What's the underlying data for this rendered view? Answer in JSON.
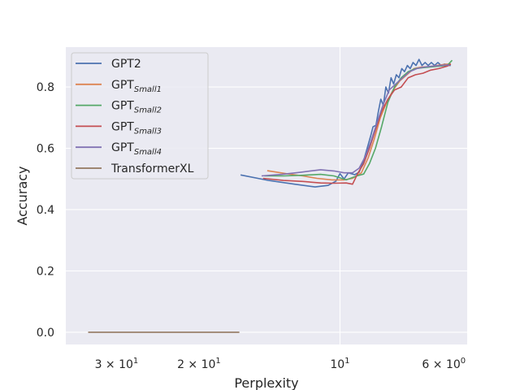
{
  "chart_data": {
    "type": "line",
    "xlabel": "Perplexity",
    "ylabel": "Accuracy",
    "x_scale": "log",
    "x_inverted": true,
    "xlim": [
      38.5,
      5.35
    ],
    "ylim": [
      -0.04,
      0.93
    ],
    "grid": true,
    "legend_position": "top-left",
    "x_ticks": [
      {
        "value": 30,
        "label": "3 × 10",
        "exp": "1"
      },
      {
        "value": 20,
        "label": "2 × 10",
        "exp": "1"
      },
      {
        "value": 10,
        "label": "10",
        "exp": "1"
      },
      {
        "value": 6,
        "label": "6 × 10",
        "exp": "0"
      }
    ],
    "y_ticks": [
      {
        "value": 0.0,
        "label": "0.0"
      },
      {
        "value": 0.2,
        "label": "0.2"
      },
      {
        "value": 0.4,
        "label": "0.4"
      },
      {
        "value": 0.6,
        "label": "0.6"
      },
      {
        "value": 0.8,
        "label": "0.8"
      }
    ],
    "series": [
      {
        "name": "GPT2",
        "name_base": "GPT2",
        "name_sub": "",
        "color": "#4c72b0",
        "points": [
          [
            16.3,
            0.513
          ],
          [
            14.2,
            0.495
          ],
          [
            12.5,
            0.483
          ],
          [
            11.3,
            0.474
          ],
          [
            10.6,
            0.479
          ],
          [
            10.2,
            0.493
          ],
          [
            10.0,
            0.517
          ],
          [
            9.8,
            0.5
          ],
          [
            9.6,
            0.52
          ],
          [
            9.3,
            0.514
          ],
          [
            9.1,
            0.522
          ],
          [
            8.9,
            0.56
          ],
          [
            8.75,
            0.6
          ],
          [
            8.6,
            0.64
          ],
          [
            8.5,
            0.67
          ],
          [
            8.38,
            0.675
          ],
          [
            8.28,
            0.72
          ],
          [
            8.18,
            0.76
          ],
          [
            8.08,
            0.74
          ],
          [
            7.98,
            0.8
          ],
          [
            7.88,
            0.78
          ],
          [
            7.78,
            0.83
          ],
          [
            7.68,
            0.81
          ],
          [
            7.58,
            0.84
          ],
          [
            7.48,
            0.83
          ],
          [
            7.38,
            0.86
          ],
          [
            7.28,
            0.85
          ],
          [
            7.18,
            0.87
          ],
          [
            7.08,
            0.86
          ],
          [
            6.98,
            0.88
          ],
          [
            6.88,
            0.87
          ],
          [
            6.78,
            0.89
          ],
          [
            6.68,
            0.87
          ],
          [
            6.58,
            0.88
          ],
          [
            6.48,
            0.87
          ],
          [
            6.38,
            0.88
          ],
          [
            6.28,
            0.87
          ],
          [
            6.18,
            0.88
          ],
          [
            6.08,
            0.87
          ],
          [
            5.98,
            0.875
          ],
          [
            5.88,
            0.87
          ],
          [
            5.8,
            0.87
          ]
        ]
      },
      {
        "name": "GPT Small1",
        "name_base": "GPT",
        "name_sub": "Small1",
        "color": "#dd8452",
        "points": [
          [
            14.3,
            0.527
          ],
          [
            13.0,
            0.517
          ],
          [
            12.0,
            0.51
          ],
          [
            11.2,
            0.502
          ],
          [
            10.4,
            0.497
          ],
          [
            9.8,
            0.497
          ],
          [
            9.4,
            0.502
          ],
          [
            9.0,
            0.52
          ],
          [
            8.7,
            0.57
          ],
          [
            8.45,
            0.63
          ],
          [
            8.2,
            0.7
          ],
          [
            7.95,
            0.75
          ],
          [
            7.7,
            0.79
          ],
          [
            7.45,
            0.82
          ],
          [
            7.2,
            0.84
          ],
          [
            6.95,
            0.86
          ],
          [
            6.7,
            0.865
          ],
          [
            6.45,
            0.866
          ],
          [
            6.2,
            0.87
          ],
          [
            5.95,
            0.874
          ],
          [
            5.8,
            0.875
          ]
        ]
      },
      {
        "name": "GPT Small2",
        "name_base": "GPT",
        "name_sub": "Small2",
        "color": "#55a868",
        "points": [
          [
            14.5,
            0.51
          ],
          [
            13.2,
            0.51
          ],
          [
            12.0,
            0.512
          ],
          [
            11.0,
            0.515
          ],
          [
            10.3,
            0.51
          ],
          [
            9.7,
            0.497
          ],
          [
            9.2,
            0.51
          ],
          [
            8.9,
            0.516
          ],
          [
            8.65,
            0.55
          ],
          [
            8.4,
            0.6
          ],
          [
            8.15,
            0.67
          ],
          [
            7.9,
            0.75
          ],
          [
            7.65,
            0.8
          ],
          [
            7.4,
            0.83
          ],
          [
            7.15,
            0.85
          ],
          [
            6.9,
            0.86
          ],
          [
            6.65,
            0.863
          ],
          [
            6.4,
            0.865
          ],
          [
            6.15,
            0.868
          ],
          [
            5.9,
            0.87
          ],
          [
            5.76,
            0.887
          ]
        ]
      },
      {
        "name": "GPT Small3",
        "name_base": "GPT",
        "name_sub": "Small3",
        "color": "#c44e52",
        "points": [
          [
            14.6,
            0.502
          ],
          [
            13.2,
            0.495
          ],
          [
            12.0,
            0.492
          ],
          [
            11.0,
            0.487
          ],
          [
            10.3,
            0.486
          ],
          [
            9.7,
            0.487
          ],
          [
            9.4,
            0.483
          ],
          [
            9.15,
            0.52
          ],
          [
            8.9,
            0.55
          ],
          [
            8.65,
            0.6
          ],
          [
            8.4,
            0.66
          ],
          [
            8.15,
            0.72
          ],
          [
            7.9,
            0.76
          ],
          [
            7.65,
            0.79
          ],
          [
            7.4,
            0.8
          ],
          [
            7.15,
            0.83
          ],
          [
            6.9,
            0.84
          ],
          [
            6.65,
            0.845
          ],
          [
            6.4,
            0.855
          ],
          [
            6.15,
            0.86
          ],
          [
            5.9,
            0.868
          ],
          [
            5.8,
            0.875
          ]
        ]
      },
      {
        "name": "GPT Small4",
        "name_base": "GPT",
        "name_sub": "Small4",
        "color": "#8172b3",
        "points": [
          [
            14.7,
            0.51
          ],
          [
            13.3,
            0.515
          ],
          [
            12.1,
            0.522
          ],
          [
            11.0,
            0.53
          ],
          [
            10.3,
            0.526
          ],
          [
            9.8,
            0.52
          ],
          [
            9.4,
            0.52
          ],
          [
            9.1,
            0.535
          ],
          [
            8.85,
            0.57
          ],
          [
            8.6,
            0.62
          ],
          [
            8.35,
            0.68
          ],
          [
            8.1,
            0.74
          ],
          [
            7.85,
            0.79
          ],
          [
            7.6,
            0.81
          ],
          [
            7.35,
            0.83
          ],
          [
            7.1,
            0.85
          ],
          [
            6.85,
            0.86
          ],
          [
            6.6,
            0.865
          ],
          [
            6.35,
            0.868
          ],
          [
            6.1,
            0.87
          ],
          [
            5.85,
            0.872
          ]
        ]
      },
      {
        "name": "TransformerXL",
        "name_base": "TransformerXL",
        "name_sub": "",
        "color": "#937860",
        "points": [
          [
            34.5,
            0.0
          ],
          [
            16.4,
            0.0
          ]
        ]
      }
    ]
  }
}
